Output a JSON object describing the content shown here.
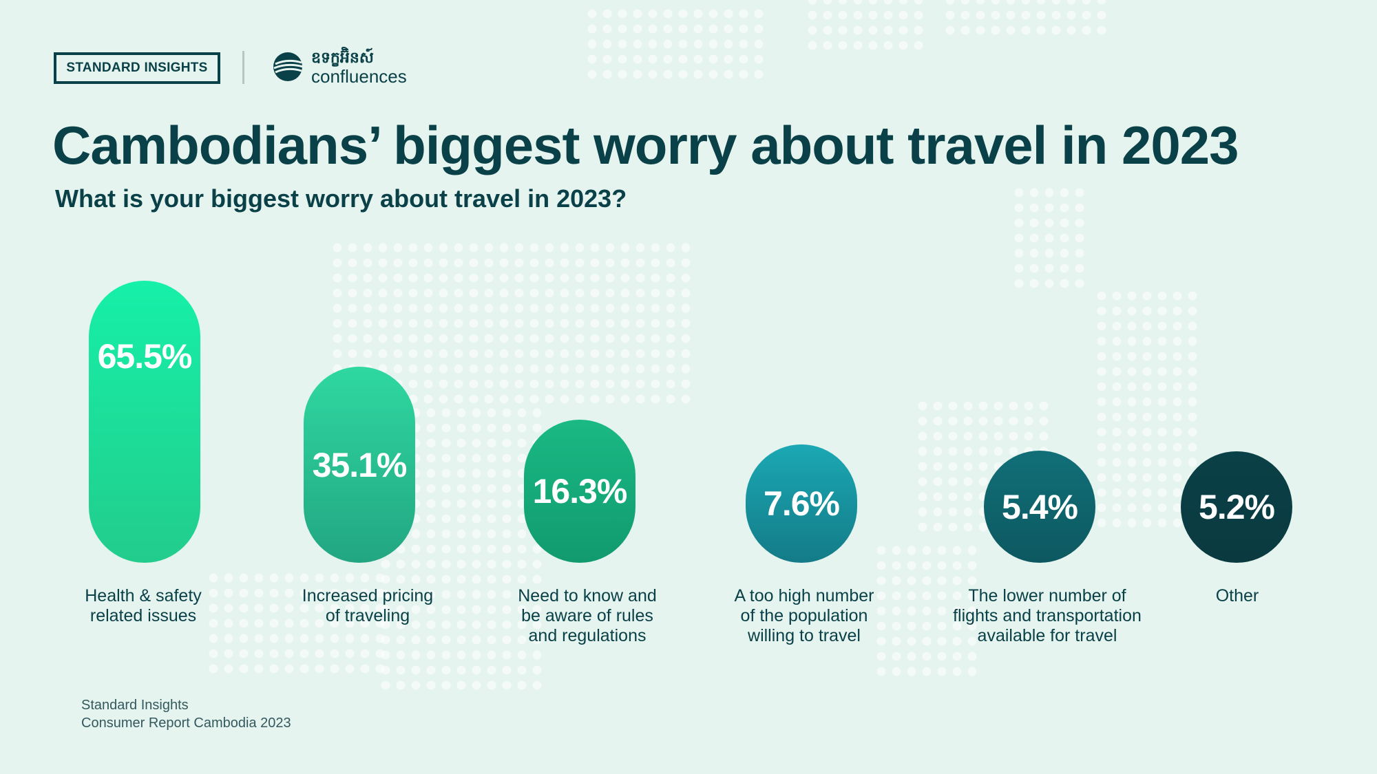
{
  "header": {
    "badge": "STANDARD INSIGHTS",
    "partner_name_km": "ឧទក្ខអ៊ិនស៍",
    "partner_name": "confluences"
  },
  "colors": {
    "background": "#e6f4ef",
    "text": "#0a4047",
    "map_dots": "#ffffff"
  },
  "chart_data": {
    "type": "bar",
    "title": "Cambodians’ biggest worry about travel in 2023",
    "subtitle": "What is your biggest worry about travel in 2023?",
    "unit": "%",
    "categories": [
      "Health & safety related issues",
      "Increased pricing of traveling",
      "Need to know and be aware of rules and regulations",
      "A too high number of the population willing to travel",
      "The lower number of flights and transportation available for travel",
      "Other"
    ],
    "category_lines": [
      [
        "Health & safety",
        "related issues"
      ],
      [
        "Increased pricing",
        "of traveling"
      ],
      [
        "Need to know and",
        "be aware of rules",
        "and regulations"
      ],
      [
        "A too high number",
        "of the population",
        "willing to travel"
      ],
      [
        "The lower number of",
        "flights and transportation",
        "available for travel"
      ],
      [
        "Other"
      ]
    ],
    "values": [
      65.5,
      35.1,
      16.3,
      7.6,
      5.4,
      5.2
    ],
    "value_labels": [
      "65.5%",
      "35.1%",
      "16.3%",
      "7.6%",
      "5.4%",
      "5.2%"
    ],
    "colors": [
      [
        "#16f0a8",
        "#22cc8c"
      ],
      [
        "#2fd8a0",
        "#22a682"
      ],
      [
        "#1ab984",
        "#119a6e"
      ],
      [
        "#1ba8b4",
        "#137b87"
      ],
      [
        "#116f78",
        "#0d5860"
      ],
      [
        "#0a4047",
        "#0a3a40"
      ]
    ],
    "legend": "none",
    "grid": false
  },
  "footer": {
    "source_line1": "Standard Insights",
    "source_line2": "Consumer Report Cambodia 2023"
  }
}
